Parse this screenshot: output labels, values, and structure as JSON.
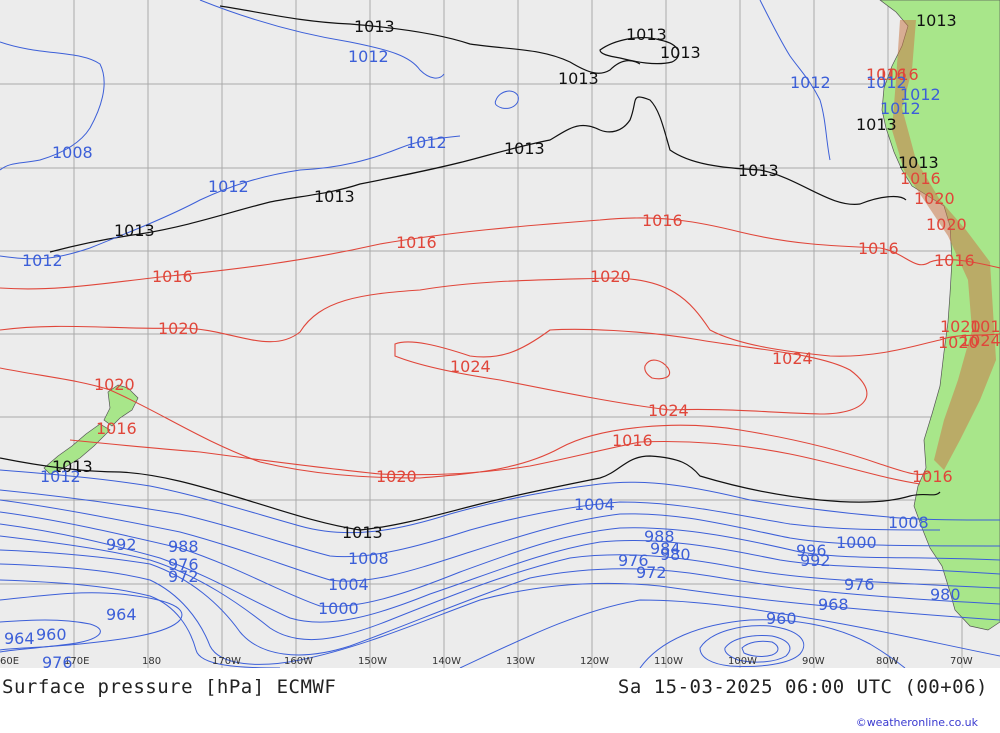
{
  "map": {
    "title_left": "Surface pressure [hPa] ECMWF",
    "title_right": "Sa 15-03-2025 06:00 UTC (00+06)",
    "credit": "©weatheronline.co.uk",
    "colors": {
      "sea": "#ececec",
      "land": "#a8e68a",
      "grid": "#aaaaaa",
      "isobar_neutral": "#111111",
      "isobar_high": "#e0463a",
      "isobar_low": "#3c5fd8"
    },
    "lon_ticks": [
      "60E",
      "170E",
      "180",
      "170W",
      "160W",
      "150W",
      "140W",
      "130W",
      "120W",
      "110W",
      "100W",
      "90W",
      "80W",
      "70W"
    ],
    "isobar_labels_black": [
      "1013",
      "1013",
      "1013",
      "1013",
      "1013",
      "1013",
      "1013",
      "1013",
      "1013",
      "1013",
      "1013",
      "1013",
      "1013"
    ],
    "isobar_labels_red": [
      "1016",
      "1016",
      "1016",
      "1016",
      "1016",
      "1016",
      "1016",
      "1016",
      "1016",
      "1016",
      "1020",
      "1020",
      "1020",
      "1020",
      "1020",
      "1020",
      "1020",
      "1020",
      "1024",
      "1024",
      "1024",
      "1024",
      "1016",
      "1016"
    ],
    "isobar_labels_blue": [
      "1012",
      "1012",
      "1012",
      "1012",
      "1008",
      "1012",
      "1012",
      "1012",
      "1012",
      "1012",
      "992",
      "988",
      "976",
      "972",
      "964",
      "964",
      "960",
      "976",
      "1008",
      "1004",
      "1000",
      "1004",
      "988",
      "984",
      "980",
      "976",
      "972",
      "996",
      "992",
      "1000",
      "976",
      "968",
      "980",
      "960",
      "1008"
    ]
  }
}
